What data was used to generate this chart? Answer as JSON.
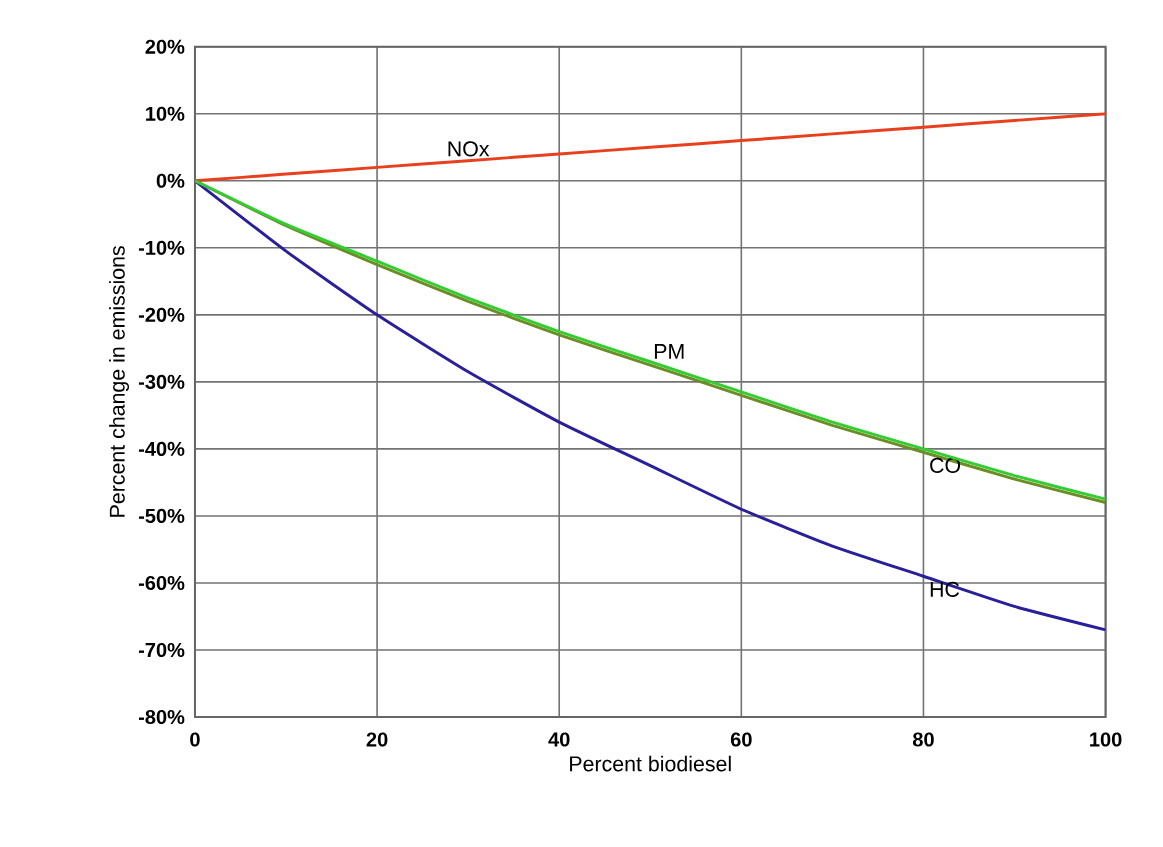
{
  "chart_data": {
    "type": "line",
    "xlabel": "Percent biodiesel",
    "ylabel": "Percent change in emissions",
    "x": [
      0,
      10,
      20,
      30,
      40,
      50,
      60,
      70,
      80,
      90,
      100
    ],
    "xlim": [
      0,
      100
    ],
    "xticks": [
      0,
      20,
      40,
      60,
      80,
      100
    ],
    "ylim": [
      -80,
      20
    ],
    "yticks": [
      {
        "value": -80,
        "label": "-80%"
      },
      {
        "value": -70,
        "label": "-70%"
      },
      {
        "value": -60,
        "label": "-60%"
      },
      {
        "value": -50,
        "label": "-50%"
      },
      {
        "value": -40,
        "label": "-40%"
      },
      {
        "value": -30,
        "label": "-30%"
      },
      {
        "value": -20,
        "label": "-20%"
      },
      {
        "value": -10,
        "label": "-10%"
      },
      {
        "value": 0,
        "label": "0%"
      },
      {
        "value": 10,
        "label": "10%"
      },
      {
        "value": 20,
        "label": "20%"
      }
    ],
    "grid": true,
    "legend": false,
    "marker": "none",
    "line_style": "solid",
    "series": [
      {
        "name": "NOx",
        "color": "#e8401c",
        "values": [
          0,
          1,
          2,
          3,
          4,
          5,
          6,
          7,
          8,
          9,
          10
        ]
      },
      {
        "name": "HC",
        "color": "#2a1f9a",
        "values": [
          0,
          -10.5,
          -20,
          -28.5,
          -36,
          -42.5,
          -49,
          -54.5,
          -59,
          -63.5,
          -67
        ]
      },
      {
        "name": "CO",
        "color": "#6b8e23",
        "values": [
          0,
          -6.7,
          -12.5,
          -18,
          -23,
          -27.5,
          -32,
          -36.5,
          -40.5,
          -44.5,
          -48
        ]
      },
      {
        "name": "PM",
        "color": "#33cc33",
        "values": [
          0,
          -6.5,
          -12,
          -17.5,
          -22.5,
          -27,
          -31.5,
          -36,
          -40,
          -44,
          -47.5
        ]
      }
    ]
  }
}
